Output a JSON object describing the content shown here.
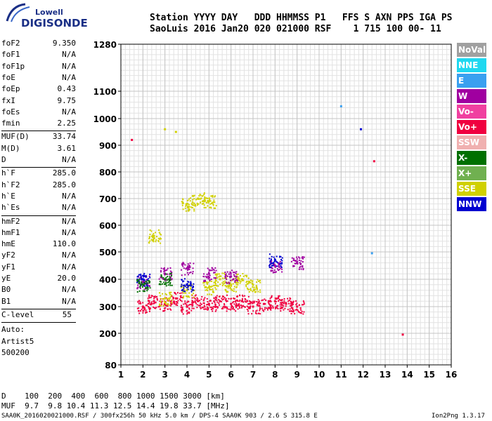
{
  "logo": {
    "line1": "Lowell",
    "line2": "DIGISONDE"
  },
  "header": {
    "row1": "Station YYYY DAY   DDD HHMMSS P1   FFS S AXN PPS IGA PS",
    "row2": "SaoLuis 2016 Jan20 020 021000 RSF    1 715 100 00- 11"
  },
  "params_group1": [
    {
      "k": "foF2",
      "v": "9.350"
    },
    {
      "k": "foF1",
      "v": "N/A"
    },
    {
      "k": "foF1p",
      "v": "N/A"
    },
    {
      "k": "foE",
      "v": "N/A"
    },
    {
      "k": "foEp",
      "v": "0.43"
    },
    {
      "k": "fxI",
      "v": "9.75"
    },
    {
      "k": "foEs",
      "v": "N/A"
    },
    {
      "k": "fmin",
      "v": "2.25"
    }
  ],
  "params_group2": [
    {
      "k": "MUF(D)",
      "v": "33.74"
    },
    {
      "k": "M(D)",
      "v": "3.61"
    },
    {
      "k": "D",
      "v": "N/A"
    }
  ],
  "params_group3": [
    {
      "k": "h`F",
      "v": "285.0"
    },
    {
      "k": "h`F2",
      "v": "285.0"
    },
    {
      "k": "h`E",
      "v": "N/A"
    },
    {
      "k": "h`Es",
      "v": "N/A"
    }
  ],
  "params_group4": [
    {
      "k": "hmF2",
      "v": "N/A"
    },
    {
      "k": "hmF1",
      "v": "N/A"
    },
    {
      "k": "hmE",
      "v": "110.0"
    },
    {
      "k": "yF2",
      "v": "N/A"
    },
    {
      "k": "yF1",
      "v": "N/A"
    },
    {
      "k": "yE",
      "v": "20.0"
    },
    {
      "k": "B0",
      "v": "N/A"
    },
    {
      "k": "B1",
      "v": "N/A"
    }
  ],
  "clevel": {
    "k": "C-level",
    "v": "55"
  },
  "auto": [
    "Auto:",
    "Artist5",
    "500200"
  ],
  "legend": [
    {
      "label": "NoVal",
      "color": "#a0a0a0"
    },
    {
      "label": "NNE",
      "color": "#20d8f0"
    },
    {
      "label": "E",
      "color": "#3aa0f0"
    },
    {
      "label": "W",
      "color": "#a000a0"
    },
    {
      "label": "Vo-",
      "color": "#f040a0"
    },
    {
      "label": "Vo+",
      "color": "#f00040"
    },
    {
      "label": "SSW",
      "color": "#f0b0b0"
    },
    {
      "label": "X-",
      "color": "#007000"
    },
    {
      "label": "X+",
      "color": "#70b050"
    },
    {
      "label": "SSE",
      "color": "#d0d000"
    },
    {
      "label": "NNW",
      "color": "#0000d0"
    }
  ],
  "footer": {
    "distance": "D    100  200  400  600  800 1000 1500 3000 [km]",
    "muf": "MUF  9.7  9.8 10.4 11.3 12.5 14.4 19.8 33.7 [MHz]",
    "file": "SAA0K_2016020021000.RSF / 300fx256h 50 kHz 5.0 km / DPS-4 SAA0K 903 / 2.6 S 315.8 E",
    "version": "Ion2Png 1.3.17"
  },
  "chart_data": {
    "type": "scatter",
    "xlabel": "",
    "ylabel": "",
    "x_ticks": [
      1,
      2,
      3,
      4,
      5,
      6,
      7,
      8,
      9,
      10,
      11,
      12,
      13,
      14,
      15,
      16
    ],
    "y_ticks": [
      80,
      200,
      300,
      400,
      500,
      600,
      700,
      800,
      900,
      1000,
      1100,
      1280
    ],
    "xlim": [
      1,
      16
    ],
    "ylim": [
      80,
      1280
    ],
    "series": [
      {
        "color": "#f00040",
        "points": [
          [
            2.0,
            300
          ],
          [
            2.5,
            320
          ],
          [
            3.0,
            310
          ],
          [
            3.5,
            330
          ],
          [
            4.0,
            300
          ],
          [
            4.5,
            320
          ],
          [
            5.0,
            310
          ],
          [
            5.5,
            320
          ],
          [
            6.0,
            310
          ],
          [
            6.5,
            320
          ],
          [
            7.0,
            300
          ],
          [
            7.5,
            310
          ],
          [
            8.0,
            320
          ],
          [
            8.5,
            310
          ],
          [
            9.0,
            300
          ],
          [
            1.5,
            920
          ],
          [
            13.8,
            195
          ],
          [
            12.5,
            840
          ]
        ]
      },
      {
        "color": "#d0d000",
        "points": [
          [
            2.5,
            560
          ],
          [
            3.0,
            960
          ],
          [
            3.5,
            950
          ],
          [
            4.0,
            680
          ],
          [
            4.5,
            700
          ],
          [
            5.0,
            690
          ],
          [
            5.5,
            400
          ],
          [
            6.0,
            380
          ],
          [
            6.5,
            400
          ],
          [
            7.0,
            380
          ],
          [
            3.0,
            330
          ],
          [
            4.0,
            360
          ],
          [
            5.0,
            370
          ]
        ]
      },
      {
        "color": "#a000a0",
        "points": [
          [
            2.0,
            390
          ],
          [
            3.0,
            420
          ],
          [
            4.0,
            440
          ],
          [
            5.0,
            420
          ],
          [
            6.0,
            410
          ],
          [
            8.0,
            450
          ],
          [
            9.0,
            460
          ]
        ]
      },
      {
        "color": "#0000d0",
        "points": [
          [
            2.0,
            400
          ],
          [
            4.0,
            380
          ],
          [
            8.0,
            470
          ],
          [
            11.9,
            960
          ]
        ]
      },
      {
        "color": "#007000",
        "points": [
          [
            2.0,
            380
          ],
          [
            3.0,
            400
          ]
        ]
      },
      {
        "color": "#3aa0f0",
        "points": [
          [
            11.0,
            1045
          ],
          [
            12.4,
            495
          ]
        ]
      }
    ]
  }
}
